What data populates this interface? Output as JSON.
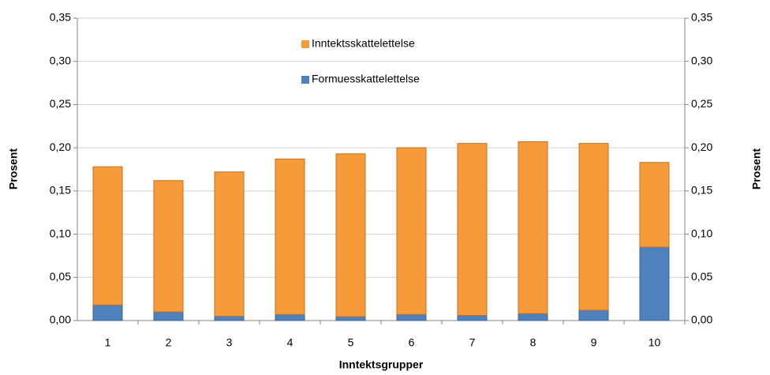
{
  "chart_data": {
    "type": "bar",
    "stacked": true,
    "x_label": "Inntektsgrupper",
    "y_label": "Prosent",
    "y2_label": "Prosent",
    "categories": [
      "1",
      "2",
      "3",
      "4",
      "5",
      "6",
      "7",
      "8",
      "9",
      "10"
    ],
    "series": [
      {
        "name": "Formuesskattelettelse",
        "color": "#4f81bd",
        "values": [
          0.018,
          0.01,
          0.005,
          0.007,
          0.0045,
          0.007,
          0.006,
          0.008,
          0.012,
          0.085
        ]
      },
      {
        "name": "Inntektsskattelettelse",
        "color": "#f79a3a",
        "values": [
          0.16,
          0.152,
          0.167,
          0.18,
          0.1885,
          0.193,
          0.199,
          0.199,
          0.193,
          0.098
        ]
      }
    ],
    "ylim": [
      0,
      0.35
    ],
    "yticks": [
      {
        "value": 0,
        "label": "0,00"
      },
      {
        "value": 0.05,
        "label": "0,05"
      },
      {
        "value": 0.1,
        "label": "0,10"
      },
      {
        "value": 0.15,
        "label": "0,15"
      },
      {
        "value": 0.2,
        "label": "0,20"
      },
      {
        "value": 0.25,
        "label": "0,25"
      },
      {
        "value": 0.3,
        "label": "0,30"
      },
      {
        "value": 0.35,
        "label": "0,35"
      }
    ],
    "y2lim": [
      0,
      0.35
    ],
    "y2ticks": [
      {
        "value": 0,
        "label": "0,00"
      },
      {
        "value": 0.05,
        "label": "0,05"
      },
      {
        "value": 0.1,
        "label": "0,10"
      },
      {
        "value": 0.15,
        "label": "0,15"
      },
      {
        "value": 0.2,
        "label": "0,20"
      },
      {
        "value": 0.25,
        "label": "0,25"
      },
      {
        "value": 0.3,
        "label": "0,30"
      },
      {
        "value": 0.35,
        "label": "0,35"
      }
    ],
    "grid": true
  }
}
